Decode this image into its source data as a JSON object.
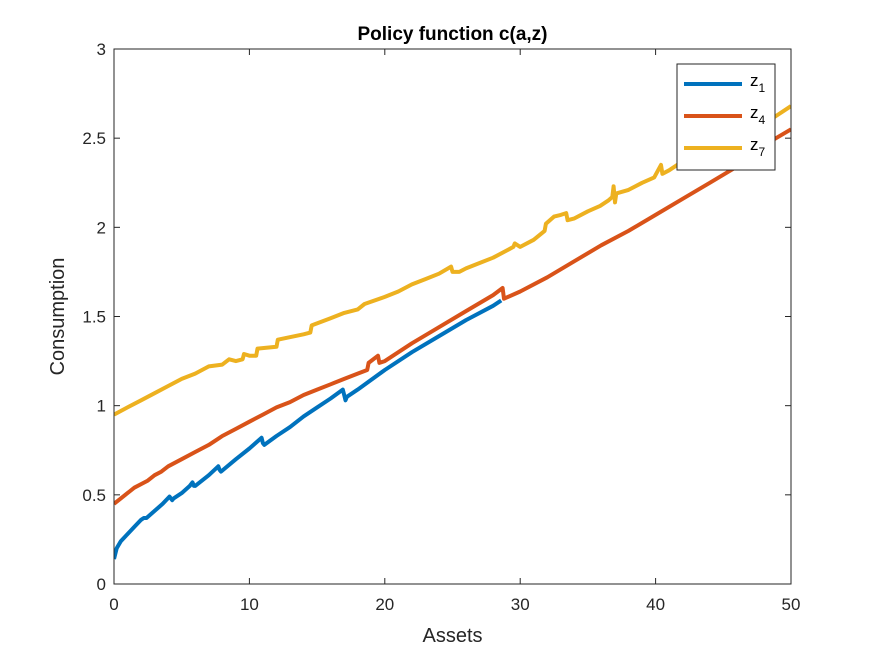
{
  "chart_data": {
    "type": "line",
    "title": "Policy function c(a,z)",
    "xlabel": "Assets",
    "ylabel": "Consumption",
    "xlim": [
      0,
      50
    ],
    "ylim": [
      0,
      3
    ],
    "xticks": [
      0,
      10,
      20,
      30,
      40,
      50
    ],
    "yticks": [
      0,
      0.5,
      1,
      1.5,
      2,
      2.5,
      3
    ],
    "xtick_labels": [
      "0",
      "10",
      "20",
      "30",
      "40",
      "50"
    ],
    "ytick_labels": [
      "0",
      "0.5",
      "1",
      "1.5",
      "2",
      "2.5",
      "3"
    ],
    "grid": false,
    "legend_position": "top-right",
    "series": [
      {
        "name": "z",
        "subscript": "1",
        "color": "#0072BD",
        "points": [
          [
            0,
            0.14
          ],
          [
            0.2,
            0.2
          ],
          [
            0.5,
            0.24
          ],
          [
            1,
            0.28
          ],
          [
            1.5,
            0.32
          ],
          [
            2,
            0.36
          ],
          [
            2.2,
            0.37
          ],
          [
            2.4,
            0.37
          ],
          [
            3,
            0.41
          ],
          [
            3.6,
            0.45
          ],
          [
            4.1,
            0.49
          ],
          [
            4.3,
            0.47
          ],
          [
            4.4,
            0.48
          ],
          [
            5,
            0.51
          ],
          [
            5.6,
            0.55
          ],
          [
            5.8,
            0.57
          ],
          [
            5.9,
            0.55
          ],
          [
            6,
            0.55
          ],
          [
            7,
            0.61
          ],
          [
            7.7,
            0.66
          ],
          [
            7.8,
            0.64
          ],
          [
            7.9,
            0.63
          ],
          [
            9,
            0.7
          ],
          [
            10,
            0.76
          ],
          [
            10.9,
            0.82
          ],
          [
            11,
            0.79
          ],
          [
            11.1,
            0.78
          ],
          [
            12,
            0.83
          ],
          [
            13,
            0.88
          ],
          [
            14,
            0.94
          ],
          [
            15,
            0.99
          ],
          [
            16,
            1.04
          ],
          [
            16.9,
            1.09
          ],
          [
            17,
            1.06
          ],
          [
            17.1,
            1.03
          ],
          [
            17.2,
            1.05
          ],
          [
            18,
            1.09
          ],
          [
            20,
            1.2
          ],
          [
            22,
            1.3
          ],
          [
            24,
            1.39
          ],
          [
            26,
            1.48
          ],
          [
            28,
            1.56
          ],
          [
            28.6,
            1.59
          ]
        ]
      },
      {
        "name": "z",
        "subscript": "4",
        "color": "#D95319",
        "points": [
          [
            0,
            0.45
          ],
          [
            0.5,
            0.48
          ],
          [
            1,
            0.51
          ],
          [
            1.5,
            0.54
          ],
          [
            2,
            0.56
          ],
          [
            2.5,
            0.58
          ],
          [
            3,
            0.61
          ],
          [
            3.5,
            0.63
          ],
          [
            4,
            0.66
          ],
          [
            5,
            0.7
          ],
          [
            6,
            0.74
          ],
          [
            7,
            0.78
          ],
          [
            7.8,
            0.82
          ],
          [
            8,
            0.83
          ],
          [
            9,
            0.87
          ],
          [
            10,
            0.91
          ],
          [
            11,
            0.95
          ],
          [
            12,
            0.99
          ],
          [
            13,
            1.02
          ],
          [
            14,
            1.06
          ],
          [
            15,
            1.09
          ],
          [
            16,
            1.12
          ],
          [
            17,
            1.15
          ],
          [
            18,
            1.18
          ],
          [
            18.7,
            1.2
          ],
          [
            18.8,
            1.24
          ],
          [
            19.5,
            1.28
          ],
          [
            19.6,
            1.24
          ],
          [
            20,
            1.25
          ],
          [
            22,
            1.35
          ],
          [
            24,
            1.44
          ],
          [
            26,
            1.53
          ],
          [
            28,
            1.62
          ],
          [
            28.7,
            1.66
          ],
          [
            28.8,
            1.6
          ],
          [
            30,
            1.64
          ],
          [
            32,
            1.72
          ],
          [
            34,
            1.81
          ],
          [
            36,
            1.9
          ],
          [
            38,
            1.98
          ],
          [
            40,
            2.07
          ],
          [
            42,
            2.16
          ],
          [
            44,
            2.25
          ],
          [
            46,
            2.34
          ],
          [
            48,
            2.46
          ],
          [
            50,
            2.55
          ]
        ]
      },
      {
        "name": "z",
        "subscript": "7",
        "color": "#EDB120",
        "points": [
          [
            0,
            0.95
          ],
          [
            1,
            0.99
          ],
          [
            2,
            1.03
          ],
          [
            3,
            1.07
          ],
          [
            4,
            1.11
          ],
          [
            5,
            1.15
          ],
          [
            6,
            1.18
          ],
          [
            7,
            1.22
          ],
          [
            8,
            1.23
          ],
          [
            8.5,
            1.26
          ],
          [
            9,
            1.25
          ],
          [
            9.5,
            1.26
          ],
          [
            9.6,
            1.29
          ],
          [
            10,
            1.28
          ],
          [
            10.5,
            1.28
          ],
          [
            10.6,
            1.32
          ],
          [
            12,
            1.33
          ],
          [
            12.1,
            1.37
          ],
          [
            14,
            1.4
          ],
          [
            14.5,
            1.41
          ],
          [
            14.6,
            1.45
          ],
          [
            16,
            1.49
          ],
          [
            17,
            1.52
          ],
          [
            18,
            1.54
          ],
          [
            18.5,
            1.57
          ],
          [
            20,
            1.61
          ],
          [
            21,
            1.64
          ],
          [
            22,
            1.68
          ],
          [
            23,
            1.71
          ],
          [
            24,
            1.74
          ],
          [
            24.9,
            1.78
          ],
          [
            25,
            1.75
          ],
          [
            25.5,
            1.75
          ],
          [
            26,
            1.77
          ],
          [
            27,
            1.8
          ],
          [
            28,
            1.83
          ],
          [
            29,
            1.87
          ],
          [
            29.5,
            1.89
          ],
          [
            29.6,
            1.91
          ],
          [
            30,
            1.89
          ],
          [
            31,
            1.93
          ],
          [
            31.8,
            1.98
          ],
          [
            31.9,
            2.02
          ],
          [
            32.5,
            2.06
          ],
          [
            33,
            2.07
          ],
          [
            33.4,
            2.08
          ],
          [
            33.5,
            2.04
          ],
          [
            34,
            2.05
          ],
          [
            35,
            2.09
          ],
          [
            35.9,
            2.12
          ],
          [
            36.5,
            2.15
          ],
          [
            36.8,
            2.17
          ],
          [
            36.9,
            2.23
          ],
          [
            37,
            2.14
          ],
          [
            37.1,
            2.19
          ],
          [
            38,
            2.21
          ],
          [
            39,
            2.25
          ],
          [
            39.9,
            2.28
          ],
          [
            40.4,
            2.35
          ],
          [
            40.5,
            2.3
          ],
          [
            41,
            2.32
          ],
          [
            42,
            2.37
          ],
          [
            43,
            2.4
          ],
          [
            44,
            2.42
          ],
          [
            44.5,
            2.45
          ],
          [
            45,
            2.46
          ],
          [
            46,
            2.5
          ],
          [
            47,
            2.55
          ],
          [
            48,
            2.58
          ],
          [
            49,
            2.63
          ],
          [
            50,
            2.68
          ]
        ]
      }
    ]
  }
}
